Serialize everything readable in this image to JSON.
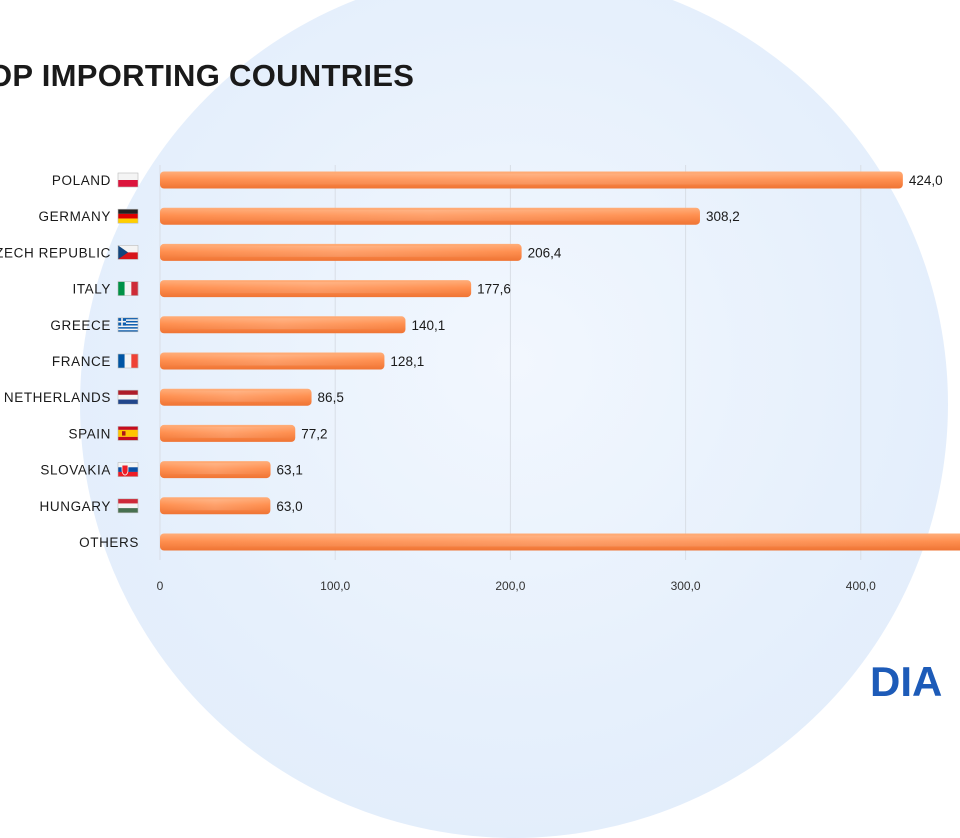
{
  "title": "OP IMPORTING COUNTRIES",
  "logo": {
    "text": "DIA"
  },
  "chart_data": {
    "type": "bar",
    "orientation": "horizontal",
    "title": "OP IMPORTING COUNTRIES",
    "categories": [
      "POLAND",
      "GERMANY",
      "ZECH REPUBLIC",
      "ITALY",
      "GREECE",
      "FRANCE",
      "NETHERLANDS",
      "SPAIN",
      "SLOVAKIA",
      "HUNGARY",
      "OTHERS"
    ],
    "flags": [
      "poland",
      "germany",
      "czech",
      "italy",
      "greece",
      "france",
      "netherlands",
      "spain",
      "slovakia",
      "hungary",
      null
    ],
    "values": [
      424.0,
      308.2,
      206.4,
      177.6,
      140.1,
      128.1,
      86.5,
      77.2,
      63.1,
      63.0,
      460.0
    ],
    "value_labels": [
      "424,0",
      "308,2",
      "206,4",
      "177,6",
      "140,1",
      "128,1",
      "86,5",
      "77,2",
      "63,1",
      "63,0",
      ""
    ],
    "xticks": [
      0,
      100,
      200,
      300,
      400
    ],
    "xtick_labels": [
      "0",
      "100,0",
      "200,0",
      "300,0",
      "400,0"
    ],
    "xlim": [
      0,
      460
    ],
    "grid": "vertical",
    "bar_color": "#ff8c4a",
    "label_color": "#1a1a1a"
  }
}
